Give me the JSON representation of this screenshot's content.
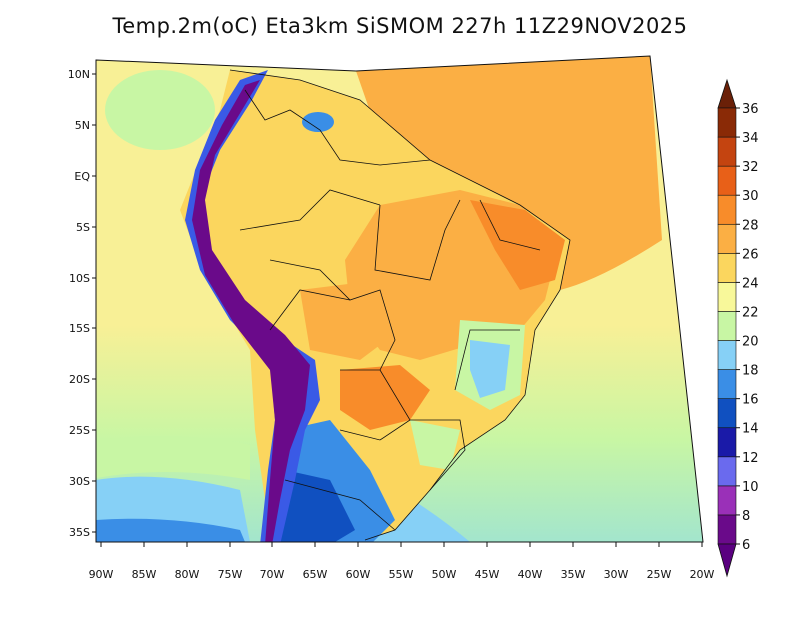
{
  "title": "Temp.2m(oC) Eta3km SiSMOM 227h 11Z29NOV2025",
  "lat_labels": [
    "10N",
    "5N",
    "EQ",
    "5S",
    "10S",
    "15S",
    "20S",
    "25S",
    "30S",
    "35S"
  ],
  "lon_labels": [
    "90W",
    "85W",
    "80W",
    "75W",
    "70W",
    "65W",
    "60W",
    "55W",
    "50W",
    "45W",
    "40W",
    "35W",
    "30W",
    "25W",
    "20W"
  ],
  "colorbar": {
    "labels": [
      "6",
      "8",
      "10",
      "12",
      "14",
      "16",
      "18",
      "20",
      "22",
      "24",
      "26",
      "28",
      "30",
      "32",
      "34",
      "36"
    ],
    "colors": [
      "#6a0a8a",
      "#9a30b8",
      "#6a6aee",
      "#1a1aa8",
      "#1050c0",
      "#3a8ee6",
      "#86d0f6",
      "#c8f6a4",
      "#f8f89a",
      "#fbd65e",
      "#fbaf44",
      "#f88c2a",
      "#e86018",
      "#c44410",
      "#8a2a06"
    ],
    "min_color": "#5a0080",
    "max_color": "#6a2008"
  },
  "colors": {
    "ocean_north": "#f8f096",
    "ocean_south": "#bff0a8",
    "ocean_cold": "#86d0f6",
    "amazon": "#fbd65e",
    "warm": "#fbaf44",
    "hot": "#f88c2a",
    "andes": "#6a0a8a",
    "andes_edge": "#3a5ae6",
    "highland": "#86d0f6",
    "patagonia": "#1050c0",
    "border": "#111111"
  }
}
